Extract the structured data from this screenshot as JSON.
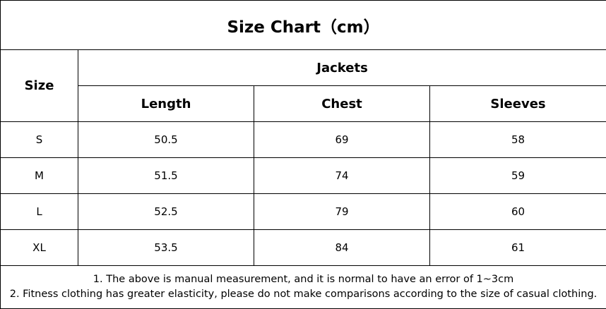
{
  "title": "Size Chart（cm）",
  "headers": {
    "size": "Size",
    "group": "Jackets",
    "columns": [
      "Length",
      "Chest",
      "Sleeves"
    ]
  },
  "rows": [
    {
      "size": "S",
      "values": [
        "50.5",
        "69",
        "58"
      ]
    },
    {
      "size": "M",
      "values": [
        "51.5",
        "74",
        "59"
      ]
    },
    {
      "size": "L",
      "values": [
        "52.5",
        "79",
        "60"
      ]
    },
    {
      "size": "XL",
      "values": [
        "53.5",
        "84",
        "61"
      ]
    }
  ],
  "notes": [
    "1. The above is manual measurement, and it is normal to have an error of 1~3cm",
    "2. Fitness clothing has greater elasticity, please do not make comparisons according to the size of casual clothing."
  ]
}
